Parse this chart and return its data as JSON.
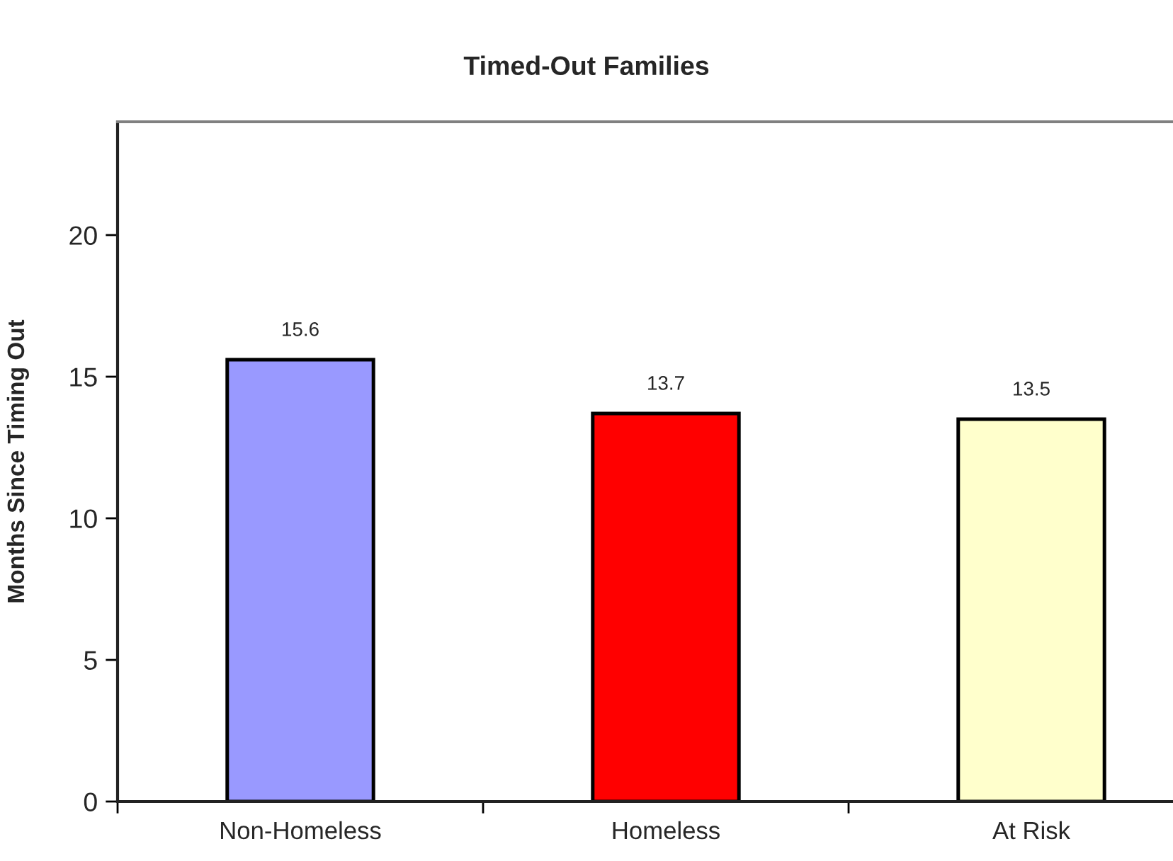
{
  "chart_data": {
    "type": "bar",
    "title": "Timed-Out Families",
    "ylabel": "Months Since Timing Out",
    "categories": [
      "Non-Homeless",
      "Homeless",
      "At Risk"
    ],
    "values": [
      15.6,
      13.7,
      13.5
    ],
    "colors": [
      "#9999ff",
      "#ff0000",
      "#ffffcc"
    ],
    "ylim": [
      0,
      24
    ],
    "yticks": [
      0,
      5,
      10,
      15,
      20
    ],
    "data_labels": true
  }
}
